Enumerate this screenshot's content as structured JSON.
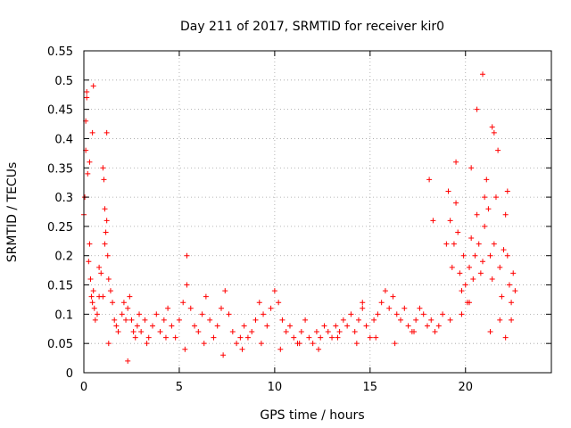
{
  "chart_data": {
    "type": "scatter",
    "title": "Day 211 of 2017, SRMTID for receiver kir0",
    "xlabel": "GPS time / hours",
    "ylabel": "SRMTID / TECUs",
    "xlim": [
      0,
      24.5
    ],
    "ylim": [
      0,
      0.55
    ],
    "xticks": [
      0,
      5,
      10,
      15,
      20
    ],
    "xtick_labels": [
      "0",
      "5",
      "10",
      "15",
      "20"
    ],
    "yticks": [
      0,
      0.05,
      0.1,
      0.15,
      0.2,
      0.25,
      0.3,
      0.35,
      0.4,
      0.45,
      0.5,
      0.55
    ],
    "ytick_labels": [
      "0",
      "0.05",
      "0.1",
      "0.15",
      "0.2",
      "0.25",
      "0.3",
      "0.35",
      "0.4",
      "0.45",
      "0.5",
      "0.55"
    ],
    "grid": true,
    "marker": "+",
    "color": "#ff0000",
    "series": [
      {
        "name": "SRMTID",
        "x": [
          0.0,
          0.05,
          0.1,
          0.15,
          0.2,
          0.25,
          0.3,
          0.35,
          0.4,
          0.45,
          0.5,
          0.55,
          0.6,
          0.7,
          0.8,
          0.9,
          1.0,
          1.05,
          1.1,
          1.15,
          1.2,
          1.25,
          1.3,
          1.4,
          1.5,
          1.6,
          1.7,
          1.8,
          2.0,
          2.1,
          2.2,
          2.3,
          2.4,
          2.5,
          2.6,
          2.7,
          2.8,
          2.9,
          3.0,
          3.2,
          3.4,
          3.6,
          3.8,
          4.0,
          4.2,
          4.4,
          4.6,
          4.8,
          5.0,
          5.2,
          5.4,
          5.6,
          5.8,
          6.0,
          6.2,
          6.4,
          6.6,
          6.8,
          7.0,
          7.2,
          7.4,
          7.6,
          7.8,
          8.0,
          8.2,
          8.4,
          8.6,
          8.8,
          9.0,
          9.2,
          9.4,
          9.6,
          9.8,
          10.0,
          10.2,
          10.4,
          10.6,
          10.8,
          11.0,
          11.2,
          11.4,
          11.6,
          11.8,
          12.0,
          12.2,
          12.4,
          12.6,
          12.8,
          13.0,
          13.2,
          13.4,
          13.6,
          13.8,
          14.0,
          14.2,
          14.4,
          14.6,
          14.8,
          15.0,
          15.2,
          15.4,
          15.6,
          15.8,
          16.0,
          16.2,
          16.4,
          16.6,
          16.8,
          17.0,
          17.2,
          17.4,
          17.6,
          17.8,
          18.0,
          18.2,
          18.4,
          18.6,
          18.8,
          19.0,
          19.1,
          19.2,
          19.3,
          19.4,
          19.5,
          19.6,
          19.7,
          19.8,
          19.9,
          20.0,
          20.1,
          20.2,
          20.3,
          20.4,
          20.5,
          20.6,
          20.7,
          20.8,
          20.9,
          21.0,
          21.1,
          21.2,
          21.3,
          21.4,
          21.5,
          21.6,
          21.7,
          21.8,
          21.9,
          22.0,
          22.1,
          22.2,
          22.3,
          22.4,
          22.5,
          22.6,
          0.1,
          0.3,
          0.5,
          0.8,
          1.0,
          1.2,
          1.3,
          2.3,
          3.3,
          4.3,
          5.3,
          6.3,
          7.3,
          8.3,
          9.3,
          10.3,
          11.3,
          12.3,
          13.3,
          14.3,
          15.3,
          16.3,
          17.3,
          18.3,
          19.2,
          19.5,
          19.8,
          20.2,
          20.6,
          21.0,
          21.3,
          21.5,
          21.8,
          22.1,
          22.4,
          0.15,
          0.45,
          1.1,
          5.4,
          14.6,
          18.1,
          20.3,
          20.9,
          21.4,
          22.2
        ],
        "y": [
          0.27,
          0.3,
          0.38,
          0.47,
          0.34,
          0.19,
          0.22,
          0.16,
          0.13,
          0.12,
          0.14,
          0.11,
          0.09,
          0.1,
          0.13,
          0.17,
          0.35,
          0.33,
          0.28,
          0.24,
          0.26,
          0.2,
          0.16,
          0.14,
          0.12,
          0.09,
          0.08,
          0.07,
          0.1,
          0.12,
          0.09,
          0.11,
          0.13,
          0.09,
          0.07,
          0.06,
          0.08,
          0.1,
          0.07,
          0.09,
          0.06,
          0.08,
          0.1,
          0.07,
          0.09,
          0.11,
          0.08,
          0.06,
          0.09,
          0.12,
          0.15,
          0.11,
          0.08,
          0.07,
          0.1,
          0.13,
          0.09,
          0.06,
          0.08,
          0.11,
          0.14,
          0.1,
          0.07,
          0.05,
          0.06,
          0.08,
          0.06,
          0.07,
          0.09,
          0.12,
          0.1,
          0.08,
          0.11,
          0.14,
          0.12,
          0.09,
          0.07,
          0.08,
          0.06,
          0.05,
          0.07,
          0.09,
          0.06,
          0.05,
          0.07,
          0.06,
          0.08,
          0.07,
          0.06,
          0.08,
          0.07,
          0.09,
          0.08,
          0.1,
          0.07,
          0.09,
          0.11,
          0.08,
          0.06,
          0.09,
          0.1,
          0.12,
          0.14,
          0.11,
          0.13,
          0.1,
          0.09,
          0.11,
          0.08,
          0.07,
          0.09,
          0.11,
          0.1,
          0.08,
          0.09,
          0.07,
          0.08,
          0.1,
          0.22,
          0.31,
          0.26,
          0.18,
          0.22,
          0.29,
          0.24,
          0.17,
          0.14,
          0.2,
          0.15,
          0.12,
          0.18,
          0.23,
          0.16,
          0.2,
          0.27,
          0.22,
          0.17,
          0.19,
          0.25,
          0.33,
          0.28,
          0.2,
          0.16,
          0.22,
          0.3,
          0.38,
          0.18,
          0.13,
          0.21,
          0.27,
          0.2,
          0.15,
          0.12,
          0.17,
          0.14,
          0.43,
          0.36,
          0.49,
          0.18,
          0.13,
          0.41,
          0.05,
          0.02,
          0.05,
          0.06,
          0.04,
          0.05,
          0.03,
          0.04,
          0.05,
          0.04,
          0.05,
          0.04,
          0.06,
          0.05,
          0.06,
          0.05,
          0.07,
          0.26,
          0.09,
          0.36,
          0.1,
          0.12,
          0.45,
          0.3,
          0.07,
          0.41,
          0.09,
          0.06,
          0.09,
          0.48,
          0.41,
          0.22,
          0.2,
          0.12,
          0.33,
          0.35,
          0.51,
          0.42,
          0.31
        ]
      }
    ]
  }
}
